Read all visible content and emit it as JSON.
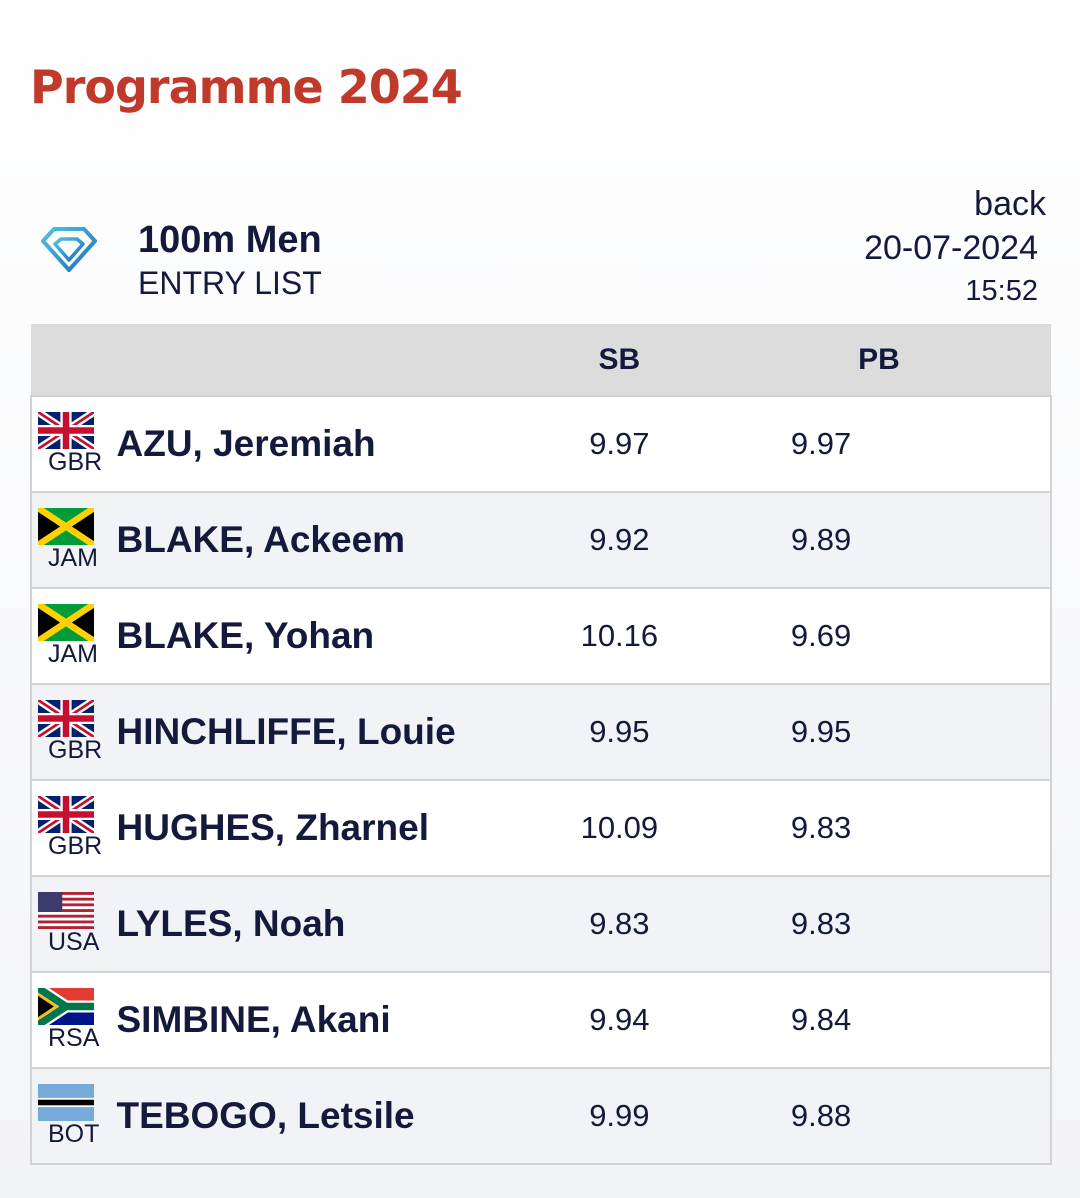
{
  "page": {
    "title": "Programme 2024"
  },
  "event": {
    "name": "100m Men",
    "subtitle": "ENTRY LIST",
    "back_label": "back",
    "date": "20-07-2024",
    "time": "15:52",
    "icon": "diamond-icon"
  },
  "table": {
    "headers": {
      "sb": "SB",
      "pb": "PB"
    },
    "rows": [
      {
        "country": "GBR",
        "flag": "gbr-flag",
        "name": "AZU, Jeremiah",
        "sb": "9.97",
        "pb": "9.97"
      },
      {
        "country": "JAM",
        "flag": "jam-flag",
        "name": "BLAKE, Ackeem",
        "sb": "9.92",
        "pb": "9.89"
      },
      {
        "country": "JAM",
        "flag": "jam-flag",
        "name": "BLAKE, Yohan",
        "sb": "10.16",
        "pb": "9.69"
      },
      {
        "country": "GBR",
        "flag": "gbr-flag",
        "name": "HINCHLIFFE, Louie",
        "sb": "9.95",
        "pb": "9.95"
      },
      {
        "country": "GBR",
        "flag": "gbr-flag",
        "name": "HUGHES, Zharnel",
        "sb": "10.09",
        "pb": "9.83"
      },
      {
        "country": "USA",
        "flag": "usa-flag",
        "name": "LYLES, Noah",
        "sb": "9.83",
        "pb": "9.83"
      },
      {
        "country": "RSA",
        "flag": "rsa-flag",
        "name": "SIMBINE, Akani",
        "sb": "9.94",
        "pb": "9.84"
      },
      {
        "country": "BOT",
        "flag": "bot-flag",
        "name": "TEBOGO, Letsile",
        "sb": "9.99",
        "pb": "9.88"
      }
    ]
  },
  "colors": {
    "title_red": "#c03a2b",
    "text_navy": "#141a3c",
    "header_gray": "#dcdcdc",
    "diamond_blue": "#2b9bd1"
  }
}
